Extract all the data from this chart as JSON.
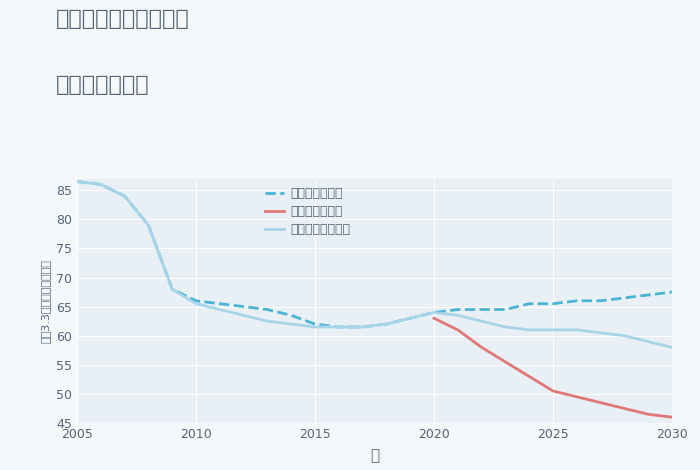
{
  "title_line1": "奈良県奈良市学園中の",
  "title_line2": "土地の価格推移",
  "xlabel": "年",
  "ylabel": "坪（3.3㎡）単価（万円）",
  "xlim": [
    2005,
    2030
  ],
  "ylim": [
    45,
    87
  ],
  "yticks": [
    45,
    50,
    55,
    60,
    65,
    70,
    75,
    80,
    85
  ],
  "xticks": [
    2005,
    2010,
    2015,
    2020,
    2025,
    2030
  ],
  "fig_bg_color": "#f5f8fb",
  "plot_bg_color": "#e8eff5",
  "good_color": "#4ab4d4",
  "bad_color": "#e07878",
  "normal_color": "#a8d4e8",
  "grid_color": "#ffffff",
  "text_color": "#556677",
  "good_label": "グッドシナリオ",
  "bad_label": "バッドシナリオ",
  "normal_label": "ノーマルシナリオ",
  "good_x": [
    2005,
    2006,
    2007,
    2008,
    2009,
    2010,
    2011,
    2012,
    2013,
    2014,
    2015,
    2016,
    2017,
    2018,
    2019,
    2020,
    2021,
    2022,
    2023,
    2024,
    2025,
    2026,
    2027,
    2028,
    2029,
    2030
  ],
  "good_y": [
    86.5,
    86.0,
    84.0,
    79.0,
    68.0,
    66.0,
    65.5,
    65.0,
    64.5,
    63.5,
    62.0,
    61.5,
    61.5,
    62.0,
    63.0,
    64.0,
    64.5,
    64.5,
    64.5,
    65.5,
    65.5,
    66.0,
    66.0,
    66.5,
    67.0,
    67.5
  ],
  "bad_x": [
    2020,
    2021,
    2022,
    2023,
    2024,
    2025,
    2026,
    2027,
    2028,
    2029,
    2030
  ],
  "bad_y": [
    63.0,
    61.0,
    58.0,
    55.5,
    53.0,
    50.5,
    49.5,
    48.5,
    47.5,
    46.5,
    46.0
  ],
  "normal_x": [
    2005,
    2006,
    2007,
    2008,
    2009,
    2010,
    2011,
    2012,
    2013,
    2014,
    2015,
    2016,
    2017,
    2018,
    2019,
    2020,
    2021,
    2022,
    2023,
    2024,
    2025,
    2026,
    2027,
    2028,
    2029,
    2030
  ],
  "normal_y": [
    86.5,
    86.0,
    84.0,
    79.0,
    68.0,
    65.5,
    64.5,
    63.5,
    62.5,
    62.0,
    61.5,
    61.5,
    61.5,
    62.0,
    63.0,
    64.0,
    63.5,
    62.5,
    61.5,
    61.0,
    61.0,
    61.0,
    60.5,
    60.0,
    59.0,
    58.0
  ]
}
